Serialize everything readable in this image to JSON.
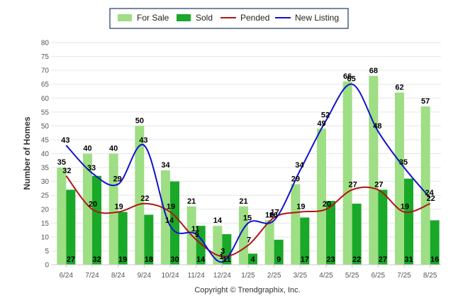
{
  "chart_data": {
    "type": "bar",
    "title": "",
    "xlabel": "",
    "ylabel": "Number of Homes",
    "ylim": [
      0,
      80
    ],
    "yticks": [
      "0",
      "5",
      "10",
      "15",
      "20",
      "25",
      "30",
      "35",
      "40",
      "45",
      "50",
      "55",
      "60",
      "65",
      "70",
      "75",
      "80"
    ],
    "categories": [
      "6/24",
      "7/24",
      "8/24",
      "9/24",
      "10/24",
      "11/24",
      "12/24",
      "1/25",
      "2/25",
      "3/25",
      "4/25",
      "5/25",
      "6/25",
      "7/25",
      "8/25"
    ],
    "series": [
      {
        "name": "For Sale",
        "kind": "bar",
        "color": "#9ede84",
        "values": [
          35,
          40,
          40,
          50,
          34,
          21,
          14,
          21,
          16,
          29,
          49,
          66,
          68,
          62,
          57
        ]
      },
      {
        "name": "Sold",
        "kind": "bar",
        "color": "#1aa829",
        "values": [
          27,
          32,
          19,
          18,
          30,
          14,
          11,
          4,
          9,
          17,
          23,
          22,
          27,
          31,
          16
        ]
      },
      {
        "name": "Pended",
        "kind": "line",
        "color": "#b01515",
        "values": [
          32,
          20,
          19,
          22,
          19,
          9,
          3,
          7,
          17,
          19,
          20,
          27,
          27,
          19,
          22
        ]
      },
      {
        "name": "New Listing",
        "kind": "line",
        "color": "#1212cc",
        "values": [
          43,
          33,
          29,
          43,
          14,
          11,
          1,
          15,
          16,
          34,
          52,
          65,
          48,
          35,
          24
        ]
      }
    ],
    "legend_position": "top-center",
    "grid": true,
    "credit": "Copyright © Trendgraphix, Inc."
  }
}
